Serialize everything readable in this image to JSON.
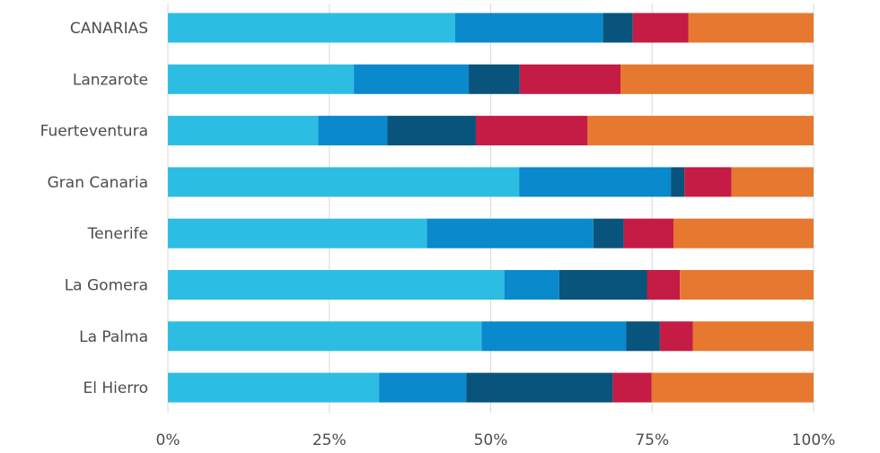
{
  "chart_data": {
    "type": "bar",
    "orientation": "horizontal",
    "stacked": "percent",
    "title": "",
    "xlabel": "",
    "ylabel": "",
    "xlim": [
      0,
      100
    ],
    "grid": true,
    "legend": "none",
    "categories": [
      "CANARIAS",
      "Lanzarote",
      "Fuerteventura",
      "Gran Canaria",
      "Tenerife",
      "La Gomera",
      "La Palma",
      "El Hierro"
    ],
    "x_ticks": [
      0,
      25,
      50,
      75,
      100
    ],
    "x_tick_labels": [
      "0%",
      "25%",
      "50%",
      "75%",
      "100%"
    ],
    "series": [
      {
        "color": "#2dbde3",
        "values": [
          44.5,
          28.8,
          23.3,
          54.4,
          40.1,
          52.1,
          48.6,
          32.7
        ]
      },
      {
        "color": "#0a89cc",
        "values": [
          22.9,
          17.8,
          10.7,
          23.5,
          25.8,
          8.5,
          22.4,
          13.5
        ]
      },
      {
        "color": "#08547c",
        "values": [
          4.6,
          7.9,
          13.7,
          2.1,
          4.7,
          13.6,
          5.2,
          22.7
        ]
      },
      {
        "color": "#c41c45",
        "values": [
          8.6,
          15.6,
          17.3,
          7.3,
          7.7,
          5.1,
          5.1,
          6.0
        ]
      },
      {
        "color": "#e6782f",
        "values": [
          19.4,
          29.9,
          35.0,
          12.7,
          21.7,
          20.7,
          18.7,
          25.1
        ]
      }
    ]
  }
}
